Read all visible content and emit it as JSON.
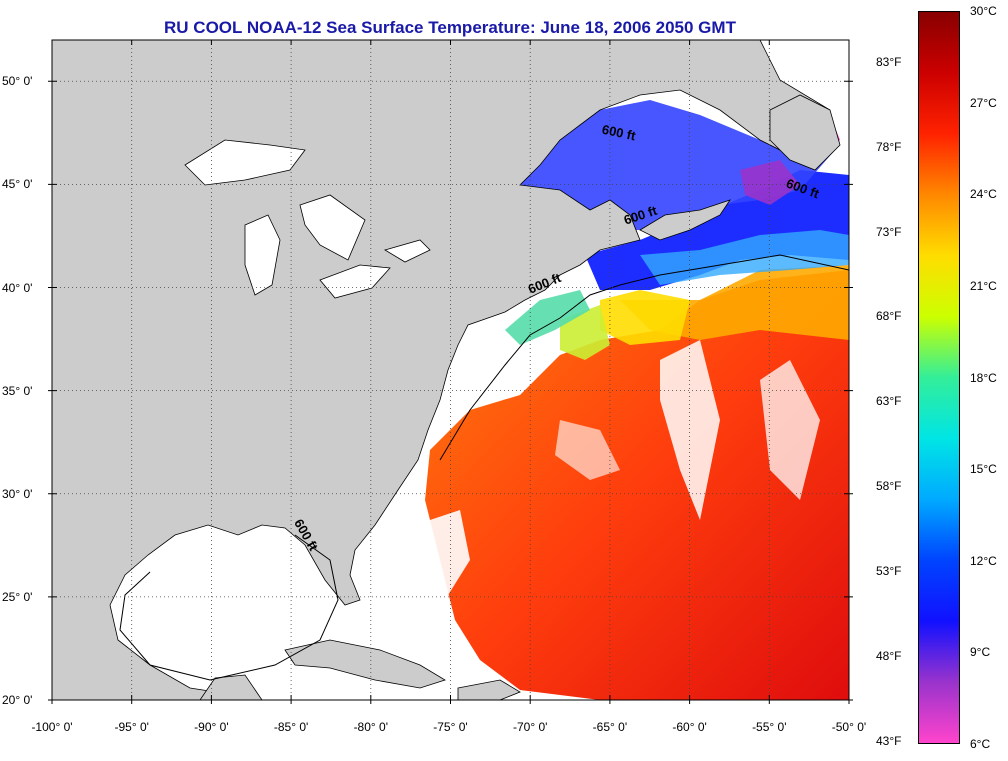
{
  "title": "RU COOL  NOAA-12  Sea Surface Temperature:  June 18, 2006 2050 GMT",
  "map": {
    "lon_range": [
      -100,
      -50
    ],
    "lat_range": [
      20,
      52
    ],
    "lon_ticks": [
      "-100° 0'",
      "-95° 0'",
      "-90° 0'",
      "-85° 0'",
      "-80° 0'",
      "-75° 0'",
      "-70° 0'",
      "-65° 0'",
      "-60° 0'",
      "-55° 0'",
      "-50° 0'"
    ],
    "lat_ticks": [
      "20° 0'",
      "25° 0'",
      "30° 0'",
      "35° 0'",
      "40° 0'",
      "45° 0'",
      "50° 0'"
    ],
    "land_color": "#cccccc",
    "ocean_color": "#ffffff",
    "contour_label": "600 ft",
    "contour_labels": [
      {
        "text": "600 ft",
        "lon": -64.5,
        "lat": 47.3
      },
      {
        "text": "600 ft",
        "lon": -63.0,
        "lat": 43.3
      },
      {
        "text": "600 ft",
        "lon": -53.0,
        "lat": 44.6
      },
      {
        "text": "600 ft",
        "lon": -69.0,
        "lat": 40.0
      },
      {
        "text": "600 ft",
        "lon": -84.3,
        "lat": 27.9
      }
    ]
  },
  "colorbar": {
    "stops": [
      "#ff44cc",
      "#9933cc",
      "#1111ff",
      "#0044ff",
      "#00aaff",
      "#00e5e5",
      "#33ee99",
      "#ccff00",
      "#ffdd00",
      "#ff8800",
      "#ff2200",
      "#cc0000",
      "#880000"
    ],
    "fahrenheit": [
      "83°F",
      "78°F",
      "73°F",
      "68°F",
      "63°F",
      "58°F",
      "53°F",
      "48°F",
      "43°F"
    ],
    "celsius": [
      "30°C",
      "27°C",
      "24°C",
      "21°C",
      "18°C",
      "15°C",
      "12°C",
      "9°C",
      "6°C"
    ],
    "min_c": 6,
    "max_c": 30
  }
}
